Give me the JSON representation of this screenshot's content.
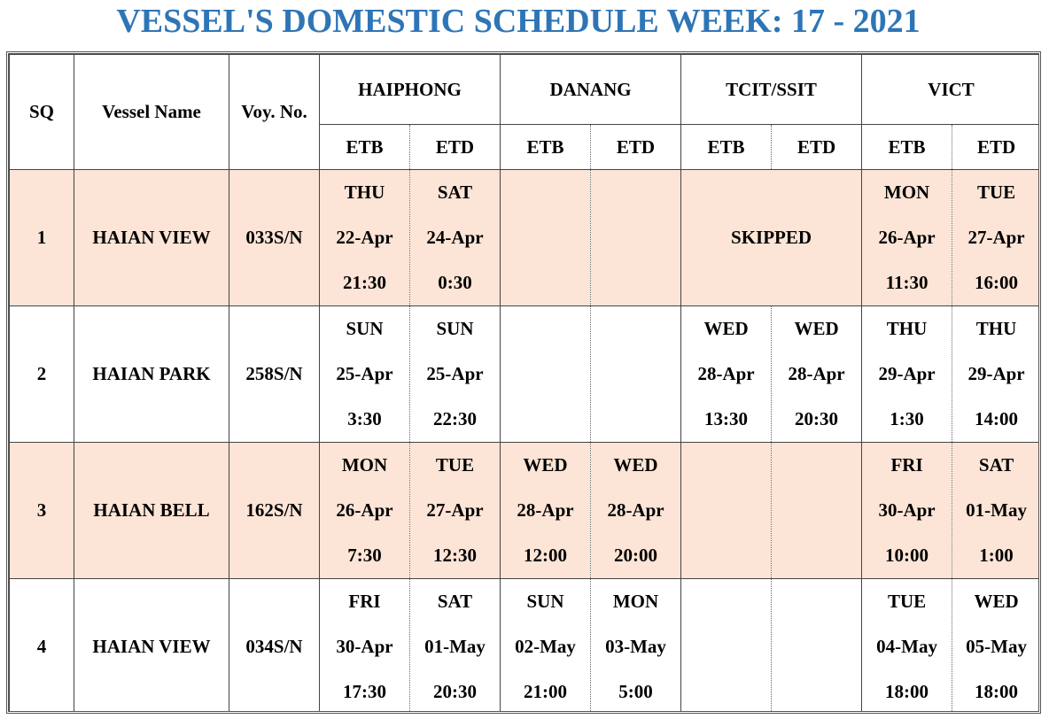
{
  "title": "VESSEL'S DOMESTIC SCHEDULE WEEK: 17 - 2021",
  "headers": {
    "sq": "SQ",
    "vessel_name": "Vessel Name",
    "voy_no": "Voy. No.",
    "ports": [
      "HAIPHONG",
      "DANANG",
      "TCIT/SSIT",
      "VICT"
    ],
    "etb": "ETB",
    "etd": "ETD"
  },
  "colors": {
    "title": "#2e75b6",
    "shaded_row": "#fce4d6"
  },
  "rows": [
    {
      "sq": "1",
      "vessel": "HAIAN VIEW",
      "voy": "033S/N",
      "shaded": true,
      "haiphong": {
        "etb": {
          "day": "THU",
          "date": "22-Apr",
          "time": "21:30"
        },
        "etd": {
          "day": "SAT",
          "date": "24-Apr",
          "time": "0:30"
        }
      },
      "danang": {
        "etb": {
          "day": "",
          "date": "",
          "time": ""
        },
        "etd": {
          "day": "",
          "date": "",
          "time": ""
        }
      },
      "tcit": {
        "skipped": "SKIPPED"
      },
      "vict": {
        "etb": {
          "day": "MON",
          "date": "26-Apr",
          "time": "11:30"
        },
        "etd": {
          "day": "TUE",
          "date": "27-Apr",
          "time": "16:00"
        }
      }
    },
    {
      "sq": "2",
      "vessel": "HAIAN PARK",
      "voy": "258S/N",
      "shaded": false,
      "haiphong": {
        "etb": {
          "day": "SUN",
          "date": "25-Apr",
          "time": "3:30"
        },
        "etd": {
          "day": "SUN",
          "date": "25-Apr",
          "time": "22:30"
        }
      },
      "danang": {
        "etb": {
          "day": "",
          "date": "",
          "time": ""
        },
        "etd": {
          "day": "",
          "date": "",
          "time": ""
        }
      },
      "tcit": {
        "etb": {
          "day": "WED",
          "date": "28-Apr",
          "time": "13:30"
        },
        "etd": {
          "day": "WED",
          "date": "28-Apr",
          "time": "20:30"
        }
      },
      "vict": {
        "etb": {
          "day": "THU",
          "date": "29-Apr",
          "time": "1:30"
        },
        "etd": {
          "day": "THU",
          "date": "29-Apr",
          "time": "14:00"
        }
      }
    },
    {
      "sq": "3",
      "vessel": "HAIAN BELL",
      "voy": "162S/N",
      "shaded": true,
      "haiphong": {
        "etb": {
          "day": "MON",
          "date": "26-Apr",
          "time": "7:30"
        },
        "etd": {
          "day": "TUE",
          "date": "27-Apr",
          "time": "12:30"
        }
      },
      "danang": {
        "etb": {
          "day": "WED",
          "date": "28-Apr",
          "time": "12:00"
        },
        "etd": {
          "day": "WED",
          "date": "28-Apr",
          "time": "20:00"
        }
      },
      "tcit": {
        "etb": {
          "day": "",
          "date": "",
          "time": ""
        },
        "etd": {
          "day": "",
          "date": "",
          "time": ""
        }
      },
      "vict": {
        "etb": {
          "day": "FRI",
          "date": "30-Apr",
          "time": "10:00"
        },
        "etd": {
          "day": "SAT",
          "date": "01-May",
          "time": "1:00"
        }
      }
    },
    {
      "sq": "4",
      "vessel": "HAIAN VIEW",
      "voy": "034S/N",
      "shaded": false,
      "haiphong": {
        "etb": {
          "day": "FRI",
          "date": "30-Apr",
          "time": "17:30"
        },
        "etd": {
          "day": "SAT",
          "date": "01-May",
          "time": "20:30"
        }
      },
      "danang": {
        "etb": {
          "day": "SUN",
          "date": "02-May",
          "time": "21:00"
        },
        "etd": {
          "day": "MON",
          "date": "03-May",
          "time": "5:00"
        }
      },
      "tcit": {
        "etb": {
          "day": "",
          "date": "",
          "time": ""
        },
        "etd": {
          "day": "",
          "date": "",
          "time": ""
        }
      },
      "vict": {
        "etb": {
          "day": "TUE",
          "date": "04-May",
          "time": "18:00"
        },
        "etd": {
          "day": "WED",
          "date": "05-May",
          "time": "18:00"
        }
      }
    }
  ]
}
